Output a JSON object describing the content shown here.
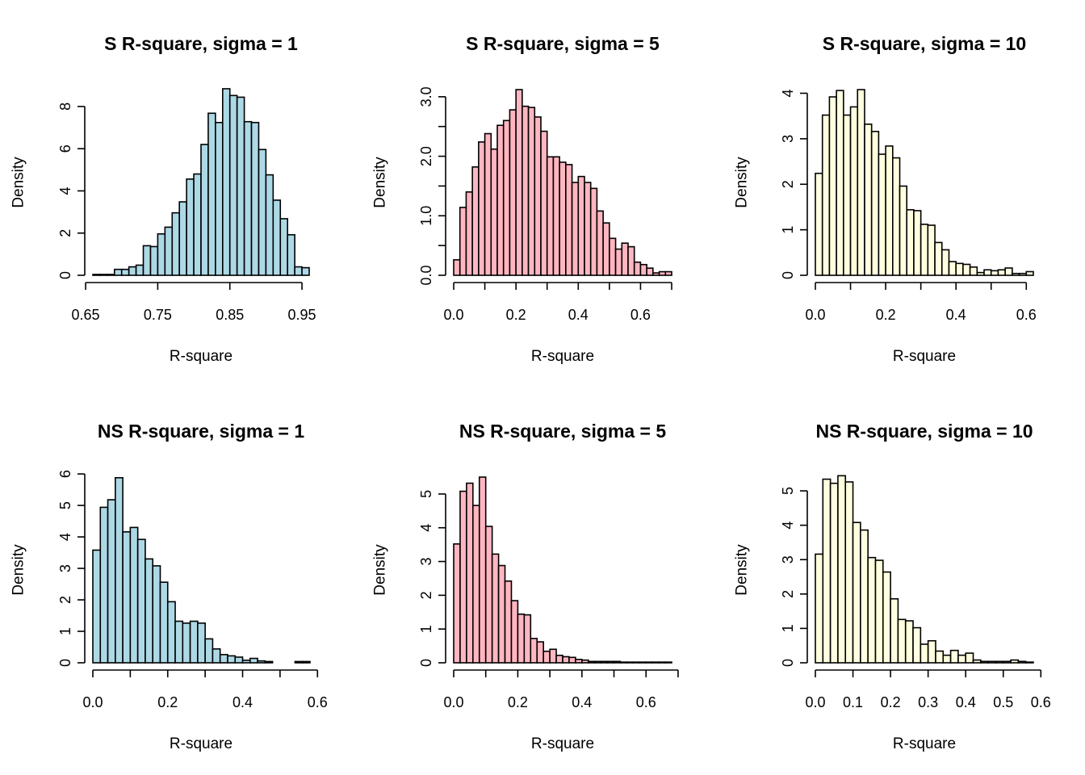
{
  "chart_data": [
    {
      "type": "bar",
      "title": "S R-square, sigma = 1",
      "xlabel": "R-square",
      "ylabel": "Density",
      "fill_color": "#add8e6",
      "grid": false,
      "xlim": [
        0.65,
        0.95
      ],
      "xticks": [
        0.65,
        0.75,
        0.85,
        0.95
      ],
      "xtick_labels": [
        "0.65",
        "0.75",
        "0.85",
        "0.95"
      ],
      "ylim": [
        0,
        8.8
      ],
      "yticks": [
        0,
        2,
        4,
        6,
        8
      ],
      "ytick_labels": [
        "0",
        "2",
        "4",
        "6",
        "8"
      ],
      "bin_start": 0.66,
      "bin_width": 0.01,
      "values": [
        0.04,
        0.04,
        0.04,
        0.28,
        0.28,
        0.4,
        0.48,
        1.4,
        1.36,
        1.96,
        2.28,
        2.96,
        3.48,
        4.56,
        4.8,
        6.2,
        7.68,
        7.24,
        8.84,
        8.52,
        8.44,
        7.28,
        7.24,
        5.96,
        4.76,
        3.56,
        2.68,
        1.92,
        0.4,
        0.36
      ]
    },
    {
      "type": "bar",
      "title": "S R-square, sigma = 5",
      "xlabel": "R-square",
      "ylabel": "Density",
      "fill_color": "#ffb6c1",
      "grid": false,
      "xlim": [
        0,
        0.7
      ],
      "xticks": [
        0,
        0.1,
        0.2,
        0.3,
        0.4,
        0.5,
        0.6,
        0.7
      ],
      "xtick_labels": [
        "0.0",
        "",
        "0.2",
        "",
        "0.4",
        "",
        "0.6",
        ""
      ],
      "ylim": [
        0,
        3.12
      ],
      "yticks": [
        0,
        0.5,
        1.0,
        1.5,
        2.0,
        2.5,
        3.0
      ],
      "ytick_labels": [
        "0.0",
        "",
        "1.0",
        "",
        "2.0",
        "",
        "3.0"
      ],
      "bin_start": 0,
      "bin_width": 0.02,
      "values": [
        0.26,
        1.14,
        1.4,
        1.82,
        2.24,
        2.38,
        2.12,
        2.52,
        2.6,
        2.78,
        3.12,
        2.84,
        2.82,
        2.66,
        2.42,
        1.99,
        1.99,
        1.9,
        1.86,
        1.56,
        1.66,
        1.56,
        1.46,
        1.08,
        0.88,
        0.62,
        0.44,
        0.54,
        0.48,
        0.22,
        0.18,
        0.12,
        0.04,
        0.06,
        0.06
      ]
    },
    {
      "type": "bar",
      "title": "S R-square, sigma = 10",
      "xlabel": "R-square",
      "ylabel": "Density",
      "fill_color": "#ffffe0",
      "grid": false,
      "xlim": [
        0,
        0.62
      ],
      "xticks": [
        0,
        0.1,
        0.2,
        0.3,
        0.4,
        0.5,
        0.6
      ],
      "xtick_labels": [
        "0.0",
        "",
        "0.2",
        "",
        "0.4",
        "",
        "0.6"
      ],
      "ylim": [
        0,
        4.08
      ],
      "yticks": [
        0,
        1,
        2,
        3,
        4
      ],
      "ytick_labels": [
        "0",
        "1",
        "2",
        "3",
        "4"
      ],
      "bin_start": 0,
      "bin_width": 0.02,
      "values": [
        2.24,
        3.52,
        3.92,
        4.06,
        3.52,
        3.7,
        4.08,
        3.32,
        3.16,
        2.66,
        2.84,
        2.58,
        1.96,
        1.44,
        1.42,
        1.12,
        1.1,
        0.72,
        0.56,
        0.3,
        0.26,
        0.24,
        0.18,
        0.06,
        0.12,
        0.1,
        0.12,
        0.16,
        0.04,
        0.04,
        0.08
      ]
    },
    {
      "type": "bar",
      "title": "NS R-square, sigma = 1",
      "xlabel": "R-square",
      "ylabel": "Density",
      "fill_color": "#add8e6",
      "grid": false,
      "xlim": [
        0,
        0.6
      ],
      "xticks": [
        0,
        0.1,
        0.2,
        0.3,
        0.4,
        0.5,
        0.6
      ],
      "xtick_labels": [
        "0.0",
        "",
        "0.2",
        "",
        "0.4",
        "",
        "0.6"
      ],
      "ylim": [
        0,
        5.9
      ],
      "yticks": [
        0,
        1,
        2,
        3,
        4,
        5,
        6
      ],
      "ytick_labels": [
        "0",
        "1",
        "2",
        "3",
        "4",
        "5",
        "6"
      ],
      "bin_start": 0,
      "bin_width": 0.02,
      "values": [
        3.58,
        4.94,
        5.18,
        5.88,
        4.16,
        4.3,
        3.92,
        3.3,
        3.08,
        2.56,
        1.94,
        1.32,
        1.26,
        1.32,
        1.26,
        0.76,
        0.44,
        0.26,
        0.22,
        0.18,
        0.08,
        0.14,
        0.06,
        0.04,
        0.0,
        0.0,
        0.0,
        0.04,
        0.04
      ]
    },
    {
      "type": "bar",
      "title": "NS R-square, sigma = 5",
      "xlabel": "R-square",
      "ylabel": "Density",
      "fill_color": "#ffb6c1",
      "grid": false,
      "xlim": [
        0,
        0.7
      ],
      "xticks": [
        0,
        0.1,
        0.2,
        0.3,
        0.4,
        0.5,
        0.6,
        0.7
      ],
      "xtick_labels": [
        "0.0",
        "",
        "0.2",
        "",
        "0.4",
        "",
        "0.6",
        ""
      ],
      "ylim": [
        0,
        5.5
      ],
      "yticks": [
        0,
        1,
        2,
        3,
        4,
        5
      ],
      "ytick_labels": [
        "0",
        "1",
        "2",
        "3",
        "4",
        "5"
      ],
      "bin_start": 0,
      "bin_width": 0.02,
      "values": [
        3.52,
        5.08,
        5.32,
        4.66,
        5.5,
        4.04,
        3.22,
        2.88,
        2.42,
        1.84,
        1.44,
        1.42,
        0.72,
        0.62,
        0.34,
        0.4,
        0.22,
        0.18,
        0.16,
        0.1,
        0.08,
        0.04,
        0.04,
        0.04,
        0.04,
        0.04,
        0.02,
        0.02,
        0.02,
        0.02,
        0.02,
        0.02,
        0.02,
        0.02
      ]
    },
    {
      "type": "bar",
      "title": "NS R-square, sigma = 10",
      "xlabel": "R-square",
      "ylabel": "Density",
      "fill_color": "#ffffe0",
      "grid": false,
      "xlim": [
        0,
        0.6
      ],
      "xticks": [
        0,
        0.1,
        0.2,
        0.3,
        0.4,
        0.5,
        0.6
      ],
      "xtick_labels": [
        "0.0",
        "0.1",
        "0.2",
        "0.3",
        "0.4",
        "0.5",
        "0.6"
      ],
      "ylim": [
        0,
        5.4
      ],
      "yticks": [
        0,
        1,
        2,
        3,
        4,
        5
      ],
      "ytick_labels": [
        "0",
        "1",
        "2",
        "3",
        "4",
        "5"
      ],
      "bin_start": 0,
      "bin_width": 0.02,
      "values": [
        3.16,
        5.34,
        5.22,
        5.44,
        5.26,
        4.08,
        3.86,
        3.06,
        2.98,
        2.64,
        1.86,
        1.26,
        1.22,
        1.02,
        0.54,
        0.64,
        0.34,
        0.22,
        0.36,
        0.22,
        0.28,
        0.08,
        0.04,
        0.04,
        0.04,
        0.04,
        0.08,
        0.04,
        0.02
      ]
    }
  ]
}
